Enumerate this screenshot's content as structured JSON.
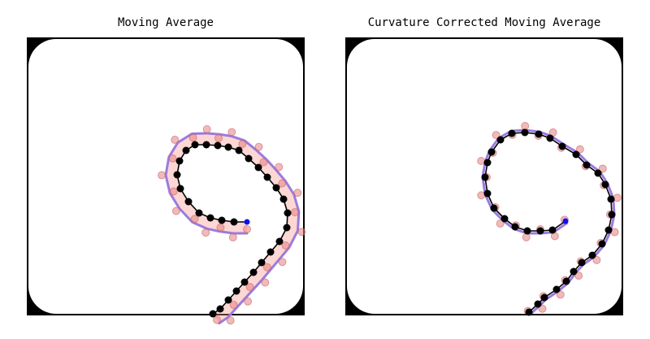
{
  "panels": [
    {
      "title": "Moving Average"
    },
    {
      "title": "Curvature Corrected Moving Average"
    }
  ]
}
